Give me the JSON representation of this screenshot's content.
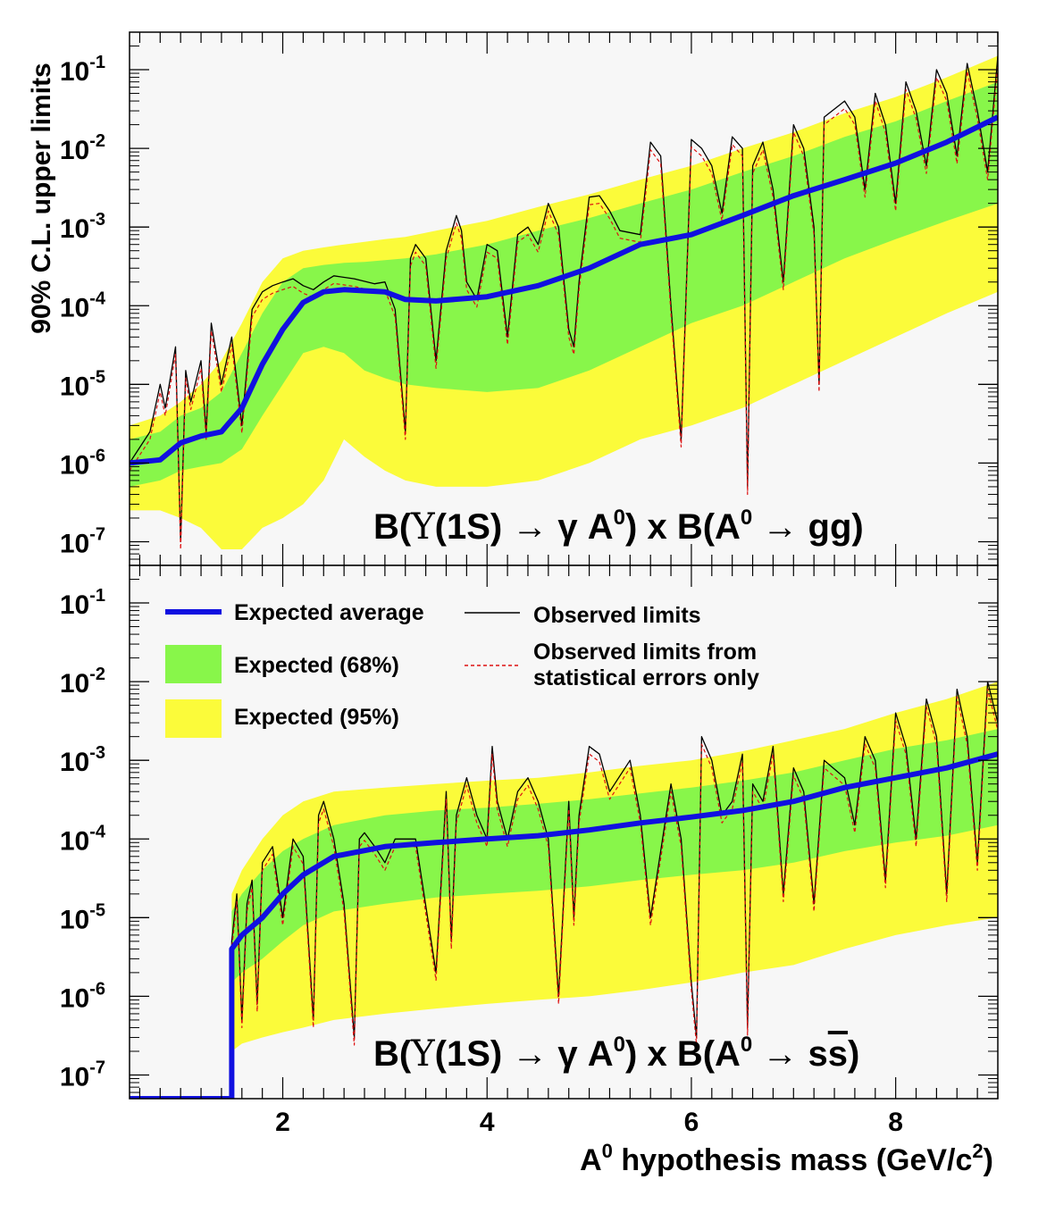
{
  "chart_data": [
    {
      "type": "line",
      "panel": "top",
      "annotation": "B(Υ(1S) → γ A⁰) x B(A⁰ → gg)",
      "xlim": [
        0.5,
        9.0
      ],
      "ylim": [
        5e-08,
        0.3
      ],
      "yscale": "log",
      "ylabel": "90% C.L. upper limits",
      "yticks": [
        {
          "value": 1e-07,
          "base": "10",
          "exp": "-7"
        },
        {
          "value": 1e-06,
          "base": "10",
          "exp": "-6"
        },
        {
          "value": 1e-05,
          "base": "10",
          "exp": "-5"
        },
        {
          "value": 0.0001,
          "base": "10",
          "exp": "-4"
        },
        {
          "value": 0.001,
          "base": "10",
          "exp": "-3"
        },
        {
          "value": 0.01,
          "base": "10",
          "exp": "-2"
        },
        {
          "value": 0.1,
          "base": "10",
          "exp": "-1"
        }
      ],
      "expected_average": {
        "x": [
          0.5,
          0.8,
          1.0,
          1.2,
          1.4,
          1.6,
          1.8,
          2.0,
          2.2,
          2.4,
          2.6,
          2.8,
          3.0,
          3.2,
          3.5,
          4.0,
          4.5,
          5.0,
          5.5,
          6.0,
          6.5,
          7.0,
          7.5,
          8.0,
          8.5,
          9.0
        ],
        "y": [
          1e-06,
          1.1e-06,
          1.8e-06,
          2.2e-06,
          2.5e-06,
          5e-06,
          1.8e-05,
          5e-05,
          0.00011,
          0.00015,
          0.00016,
          0.000155,
          0.00015,
          0.00012,
          0.000115,
          0.00013,
          0.00018,
          0.0003,
          0.0006,
          0.0008,
          0.0014,
          0.0025,
          0.004,
          0.0065,
          0.012,
          0.025
        ]
      },
      "band68": {
        "x": [
          0.5,
          0.8,
          1.0,
          1.2,
          1.4,
          1.6,
          1.8,
          2.0,
          2.2,
          2.4,
          2.6,
          2.8,
          3.0,
          3.2,
          3.5,
          4.0,
          4.5,
          5.0,
          5.5,
          6.0,
          6.5,
          7.0,
          7.5,
          8.0,
          8.5,
          9.0
        ],
        "low": [
          5e-07,
          6e-07,
          8e-07,
          9e-07,
          1e-06,
          1.5e-06,
          4e-06,
          1e-05,
          2.5e-05,
          3e-05,
          2.5e-05,
          1.5e-05,
          1.2e-05,
          1e-05,
          9e-06,
          8e-06,
          9e-06,
          1.5e-05,
          3e-05,
          6e-05,
          0.0001,
          0.0002,
          0.0004,
          0.0007,
          0.0012,
          0.002
        ],
        "high": [
          2e-06,
          2.5e-06,
          4e-06,
          5e-06,
          8e-06,
          2.5e-05,
          8e-05,
          0.0002,
          0.0003,
          0.00033,
          0.00035,
          0.00036,
          0.00038,
          0.0004,
          0.00045,
          0.0006,
          0.0009,
          0.0013,
          0.002,
          0.003,
          0.005,
          0.008,
          0.014,
          0.022,
          0.04,
          0.07
        ]
      },
      "band95": {
        "x": [
          0.5,
          0.8,
          1.0,
          1.2,
          1.4,
          1.6,
          1.8,
          2.0,
          2.2,
          2.4,
          2.6,
          2.8,
          3.0,
          3.2,
          3.5,
          4.0,
          4.5,
          5.0,
          5.5,
          6.0,
          6.5,
          7.0,
          7.5,
          8.0,
          8.5,
          9.0
        ],
        "low": [
          2.5e-07,
          2.5e-07,
          2e-07,
          1.5e-07,
          8e-08,
          8e-08,
          1.5e-07,
          2e-07,
          3e-07,
          6e-07,
          2e-06,
          1.2e-06,
          8e-07,
          6e-07,
          5e-07,
          5e-07,
          6e-07,
          1e-06,
          2e-06,
          3e-06,
          5e-06,
          1e-05,
          2e-05,
          4e-05,
          8e-05,
          0.00015
        ],
        "high": [
          3e-06,
          4e-06,
          6e-06,
          1e-05,
          2e-05,
          6e-05,
          0.0002,
          0.0004,
          0.0005,
          0.00055,
          0.0006,
          0.00065,
          0.0007,
          0.00075,
          0.0009,
          0.0012,
          0.0018,
          0.0026,
          0.004,
          0.006,
          0.01,
          0.016,
          0.028,
          0.045,
          0.08,
          0.15
        ]
      },
      "observed": {
        "x": [
          0.5,
          0.7,
          0.8,
          0.85,
          0.95,
          1.0,
          1.05,
          1.1,
          1.2,
          1.25,
          1.3,
          1.4,
          1.5,
          1.6,
          1.7,
          1.8,
          1.9,
          2.0,
          2.1,
          2.2,
          2.3,
          2.4,
          2.5,
          2.7,
          2.9,
          3.0,
          3.1,
          3.2,
          3.25,
          3.3,
          3.4,
          3.5,
          3.6,
          3.7,
          3.75,
          3.8,
          3.9,
          4.0,
          4.1,
          4.2,
          4.3,
          4.4,
          4.5,
          4.6,
          4.7,
          4.8,
          4.85,
          4.9,
          5.0,
          5.1,
          5.2,
          5.3,
          5.5,
          5.6,
          5.7,
          5.8,
          5.9,
          6.0,
          6.1,
          6.2,
          6.3,
          6.4,
          6.5,
          6.55,
          6.6,
          6.7,
          6.8,
          6.9,
          7.0,
          7.1,
          7.2,
          7.25,
          7.3,
          7.5,
          7.6,
          7.7,
          7.8,
          7.9,
          8.0,
          8.1,
          8.2,
          8.3,
          8.4,
          8.5,
          8.6,
          8.7,
          8.8,
          8.9,
          9.0
        ],
        "y": [
          1e-06,
          2.5e-06,
          1e-05,
          5e-06,
          3e-05,
          1e-07,
          1.5e-05,
          6e-06,
          2e-05,
          2.5e-06,
          6e-05,
          1e-05,
          4e-05,
          3e-06,
          9e-05,
          0.00015,
          0.00018,
          0.0002,
          0.00022,
          0.00018,
          0.00016,
          0.0002,
          0.00024,
          0.00022,
          0.00019,
          0.0002,
          9e-05,
          2.5e-06,
          0.0004,
          0.0006,
          0.0004,
          2e-05,
          0.0005,
          0.0014,
          0.0009,
          0.0002,
          0.00012,
          0.0006,
          0.0005,
          4e-05,
          0.0008,
          0.001,
          0.0006,
          0.002,
          0.001,
          5e-05,
          3e-05,
          0.0002,
          0.0024,
          0.0025,
          0.0016,
          0.0009,
          0.0008,
          0.012,
          0.008,
          0.0001,
          2e-06,
          0.013,
          0.01,
          0.006,
          0.0015,
          0.014,
          0.01,
          5e-07,
          0.006,
          0.012,
          0.003,
          0.0002,
          0.02,
          0.01,
          0.001,
          1e-05,
          0.025,
          0.04,
          0.025,
          0.003,
          0.05,
          0.02,
          0.002,
          0.07,
          0.03,
          0.006,
          0.1,
          0.05,
          0.008,
          0.12,
          0.03,
          0.005,
          0.15
        ]
      }
    },
    {
      "type": "line",
      "panel": "bottom",
      "annotation": "B(Υ(1S) → γ A⁰) x B(A⁰ → ss̄)",
      "xlim": [
        0.5,
        9.0
      ],
      "ylim": [
        5e-08,
        0.3
      ],
      "yscale": "log",
      "xlabel": "A⁰ hypothesis mass (GeV/c²)",
      "xticks": [
        "2",
        "4",
        "6",
        "8"
      ],
      "xtick_values": [
        2,
        4,
        6,
        8
      ],
      "yticks": [
        {
          "value": 1e-07,
          "base": "10",
          "exp": "-7"
        },
        {
          "value": 1e-06,
          "base": "10",
          "exp": "-6"
        },
        {
          "value": 1e-05,
          "base": "10",
          "exp": "-5"
        },
        {
          "value": 0.0001,
          "base": "10",
          "exp": "-4"
        },
        {
          "value": 0.001,
          "base": "10",
          "exp": "-3"
        },
        {
          "value": 0.01,
          "base": "10",
          "exp": "-2"
        },
        {
          "value": 0.1,
          "base": "10",
          "exp": "-1"
        }
      ],
      "expected_average": {
        "x": [
          0.5,
          1.5,
          1.5,
          1.6,
          1.8,
          2.0,
          2.2,
          2.5,
          3.0,
          3.5,
          4.0,
          4.5,
          5.0,
          5.5,
          6.0,
          6.5,
          7.0,
          7.5,
          8.0,
          8.5,
          9.0
        ],
        "y": [
          5e-08,
          5e-08,
          4e-06,
          6e-06,
          1e-05,
          2e-05,
          3.5e-05,
          6e-05,
          8e-05,
          9e-05,
          0.0001,
          0.00011,
          0.00013,
          0.00016,
          0.00019,
          0.00023,
          0.0003,
          0.00045,
          0.0006,
          0.0008,
          0.0012
        ]
      },
      "band68": {
        "x": [
          1.5,
          1.6,
          1.8,
          2.0,
          2.2,
          2.5,
          3.0,
          3.5,
          4.0,
          4.5,
          5.0,
          5.5,
          6.0,
          6.5,
          7.0,
          7.5,
          8.0,
          8.5,
          9.0
        ],
        "low": [
          1.5e-06,
          2e-06,
          3e-06,
          5e-06,
          8e-06,
          1.2e-05,
          1.5e-05,
          1.8e-05,
          2e-05,
          2.2e-05,
          2.5e-05,
          3e-05,
          3.5e-05,
          4e-05,
          5e-05,
          7e-05,
          9e-05,
          0.00011,
          0.00015
        ],
        "high": [
          1.2e-05,
          2e-05,
          4e-05,
          7e-05,
          0.0001,
          0.00015,
          0.0002,
          0.00023,
          0.00025,
          0.00028,
          0.00032,
          0.00038,
          0.00045,
          0.00055,
          0.0007,
          0.001,
          0.0014,
          0.0018,
          0.0025
        ]
      },
      "band95": {
        "x": [
          1.5,
          1.6,
          1.8,
          2.0,
          2.2,
          2.5,
          3.0,
          3.5,
          4.0,
          4.5,
          5.0,
          5.5,
          6.0,
          6.5,
          7.0,
          7.5,
          8.0,
          8.5,
          9.0
        ],
        "low": [
          2e-07,
          2.5e-07,
          3e-07,
          3.5e-07,
          4e-07,
          5e-07,
          6e-07,
          7e-07,
          8e-07,
          9e-07,
          1e-06,
          1.2e-06,
          1.5e-06,
          2e-06,
          2.5e-06,
          4e-06,
          6e-06,
          8e-06,
          1e-05
        ],
        "high": [
          2e-05,
          4e-05,
          0.0001,
          0.0002,
          0.0003,
          0.0004,
          0.00045,
          0.0005,
          0.00055,
          0.0006,
          0.0007,
          0.00085,
          0.001,
          0.0013,
          0.0018,
          0.0025,
          0.004,
          0.006,
          0.01
        ]
      },
      "observed": {
        "x": [
          0.5,
          1.5,
          1.5,
          1.55,
          1.6,
          1.65,
          1.7,
          1.75,
          1.8,
          1.9,
          2.0,
          2.1,
          2.2,
          2.3,
          2.35,
          2.4,
          2.5,
          2.6,
          2.7,
          2.75,
          2.8,
          2.9,
          3.0,
          3.1,
          3.2,
          3.3,
          3.5,
          3.6,
          3.65,
          3.7,
          3.8,
          3.9,
          4.0,
          4.05,
          4.1,
          4.2,
          4.3,
          4.4,
          4.5,
          4.6,
          4.7,
          4.8,
          4.85,
          4.9,
          5.0,
          5.1,
          5.2,
          5.4,
          5.5,
          5.6,
          5.8,
          5.9,
          6.0,
          6.05,
          6.1,
          6.2,
          6.3,
          6.4,
          6.5,
          6.55,
          6.6,
          6.7,
          6.8,
          6.9,
          7.0,
          7.1,
          7.2,
          7.3,
          7.5,
          7.6,
          7.7,
          7.8,
          7.9,
          8.0,
          8.1,
          8.2,
          8.3,
          8.4,
          8.5,
          8.6,
          8.7,
          8.8,
          8.9,
          9.0
        ],
        "y": [
          5e-08,
          5e-08,
          5e-06,
          2e-05,
          5e-07,
          1.5e-05,
          3e-05,
          8e-07,
          5e-05,
          8e-05,
          1e-05,
          0.0001,
          6e-05,
          5e-07,
          0.0002,
          0.0003,
          0.0001,
          1.5e-05,
          3e-07,
          0.0001,
          0.00012,
          8e-05,
          5e-05,
          0.0001,
          0.0001,
          0.0001,
          2e-06,
          0.0004,
          5e-06,
          0.0002,
          0.0006,
          0.0002,
          0.0001,
          0.0015,
          0.0003,
          0.0001,
          0.0004,
          0.0006,
          0.0003,
          0.0001,
          1e-06,
          0.0003,
          1e-05,
          0.0002,
          0.0015,
          0.0012,
          0.0004,
          0.001,
          0.0002,
          1e-05,
          0.0005,
          0.0001,
          1.5e-06,
          3e-07,
          0.002,
          0.001,
          0.0002,
          0.0003,
          0.0012,
          4e-07,
          0.0005,
          0.0003,
          0.0015,
          2e-05,
          0.0008,
          0.0004,
          1.5e-05,
          0.001,
          0.0006,
          0.00015,
          0.002,
          0.001,
          3e-05,
          0.004,
          0.0015,
          0.0001,
          0.006,
          0.002,
          2e-05,
          0.008,
          0.002,
          5e-05,
          0.01,
          0.003
        ]
      }
    }
  ],
  "annotations": {
    "top_prefix": "B(",
    "top_upsilon": "Υ",
    "top_mid": "(1S) → γ A",
    "top_sup1": "0",
    "top_suffix": ") x B(A",
    "top_sup2": "0",
    "top_end": " → gg)",
    "bottom_prefix": "B(",
    "bottom_upsilon": "Υ",
    "bottom_mid": "(1S) → γ A",
    "bottom_sup1": "0",
    "bottom_suffix": ") x B(A",
    "bottom_sup2": "0",
    "bottom_end_a": " → s",
    "bottom_end_b": "s",
    "bottom_end_c": ")"
  },
  "axis": {
    "ylabel": "90% C.L. upper limits",
    "xlabel_main": "A",
    "xlabel_sup": "0",
    "xlabel_rest": " hypothesis mass (GeV/c",
    "xlabel_sup2": "2",
    "xlabel_end": ")"
  },
  "legend": {
    "expected_average": "Expected average",
    "expected_68": "Expected (68%)",
    "expected_95": "Expected (95%)",
    "observed": "Observed limits",
    "observed_stat_line1": "Observed limits from",
    "observed_stat_line2": "statistical errors only"
  },
  "colors": {
    "expected_average": "#1010e0",
    "band68": "#88f64a",
    "band95": "#fbfb3a",
    "observed": "#000000",
    "observed_stat": "#dd1111",
    "background_fill": "#f7f7f7"
  }
}
